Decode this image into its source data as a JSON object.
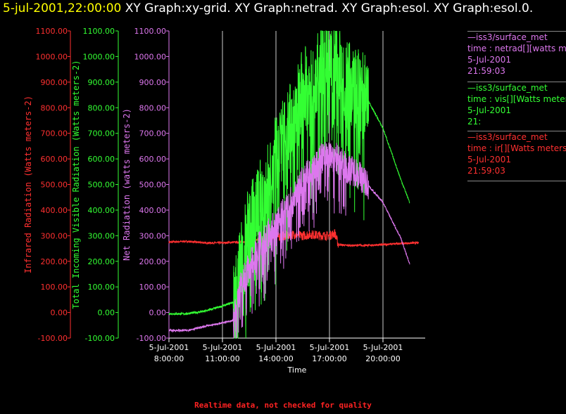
{
  "header": {
    "time": "5-jul-2001,22:00:00",
    "graphs": "XY Graph:xy-grid.  XY Graph:netrad.  XY Graph:esol.  XY Graph:esol.0."
  },
  "colors": {
    "ir": "#ff3030",
    "vis": "#33ff33",
    "net": "#dd77ee",
    "grid": "#cccccc",
    "text": "#ffffff"
  },
  "chart_data": {
    "type": "line",
    "xlabel": "Time",
    "x_ticks": [
      {
        "date": "5-Jul-2001",
        "time": "8:00:00",
        "hour": 8
      },
      {
        "date": "5-Jul-2001",
        "time": "11:00:00",
        "hour": 11
      },
      {
        "date": "5-Jul-2001",
        "time": "14:00:00",
        "hour": 14
      },
      {
        "date": "5-Jul-2001",
        "time": "17:00:00",
        "hour": 17
      },
      {
        "date": "5-Jul-2001",
        "time": "20:00:00",
        "hour": 20
      }
    ],
    "xlim_hours": [
      8,
      22
    ],
    "y_axes": [
      {
        "id": "ir",
        "label": "Infrared Radiation (Watts meters-2)",
        "color": "#ff3030",
        "ticks": [
          "1100.00",
          "1000.00",
          "900.00",
          "800.00",
          "700.00",
          "600.00",
          "500.00",
          "400.00",
          "300.00",
          "200.00",
          "100.00",
          "0.00",
          "-100.00"
        ],
        "ylim": [
          -100,
          1100
        ]
      },
      {
        "id": "vis",
        "label": "Total Incoming Visible Radiation (Watts meters-2)",
        "color": "#33ff33",
        "ticks": [
          "1100.00",
          "1000.00",
          "900.00",
          "800.00",
          "700.00",
          "600.00",
          "500.00",
          "400.00",
          "300.00",
          "200.00",
          "100.00",
          "0.00",
          "-100.00"
        ],
        "ylim": [
          -100,
          1100
        ]
      },
      {
        "id": "net",
        "label": "Net Radiation (watts meters-2)",
        "color": "#dd77ee",
        "ticks": [
          "1100.00",
          "1000.00",
          "900.00",
          "800.00",
          "700.00",
          "600.00",
          "500.00",
          "400.00",
          "300.00",
          "200.00",
          "100.00",
          "0.00",
          "-100.00"
        ],
        "ylim": [
          -100,
          1100
        ]
      }
    ],
    "series": [
      {
        "id": "ir",
        "color": "#ff3030",
        "noise": 8,
        "x": [
          8,
          9,
          10,
          11,
          12,
          13,
          14,
          14.5,
          15,
          15.5,
          16,
          16.5,
          17,
          17.3,
          17.5,
          18,
          19,
          20,
          21,
          22
        ],
        "y": [
          275,
          278,
          272,
          272,
          275,
          285,
          295,
          300,
          305,
          300,
          305,
          300,
          300,
          310,
          265,
          262,
          262,
          265,
          270,
          272
        ]
      },
      {
        "id": "vis",
        "color": "#33ff33",
        "noise": 160,
        "x": [
          8,
          9,
          10,
          11,
          11.6,
          12,
          12.5,
          13,
          13.5,
          14,
          14.5,
          15,
          15.5,
          16,
          16.5,
          17,
          17.5,
          18,
          18.5,
          19,
          20,
          21,
          21.5
        ],
        "y": [
          -5,
          -5,
          5,
          25,
          40,
          200,
          350,
          420,
          500,
          620,
          700,
          780,
          880,
          900,
          960,
          1000,
          1000,
          900,
          880,
          850,
          720,
          520,
          430
        ]
      },
      {
        "id": "net",
        "color": "#dd77ee",
        "noise": 60,
        "x": [
          8,
          9,
          10,
          11,
          11.6,
          12,
          12.5,
          13,
          13.5,
          14,
          14.5,
          15,
          15.5,
          16,
          16.5,
          17,
          17.5,
          18,
          18.5,
          19,
          20,
          21,
          21.5
        ],
        "y": [
          -70,
          -70,
          -55,
          -40,
          -30,
          100,
          180,
          250,
          300,
          350,
          400,
          450,
          520,
          550,
          600,
          620,
          600,
          560,
          550,
          510,
          430,
          290,
          190
        ]
      }
    ]
  },
  "legend": [
    {
      "source": "—iss3/surface_met",
      "var": "time : netrad[][watts me",
      "date": "5-Jul-2001",
      "time": "21:59:03",
      "color": "#dd77ee"
    },
    {
      "source": "—iss3/surface_met",
      "var": "time : vis[][Watts meter",
      "date": "5-Jul-2001",
      "time": "21:",
      "color": "#33ff33"
    },
    {
      "source": "—iss3/surface_met",
      "var": "time : ir[][Watts meters",
      "date": "5-Jul-2001",
      "time": "21:59:03",
      "color": "#ff3030"
    }
  ],
  "footer": "Realtime data, not checked for quality"
}
